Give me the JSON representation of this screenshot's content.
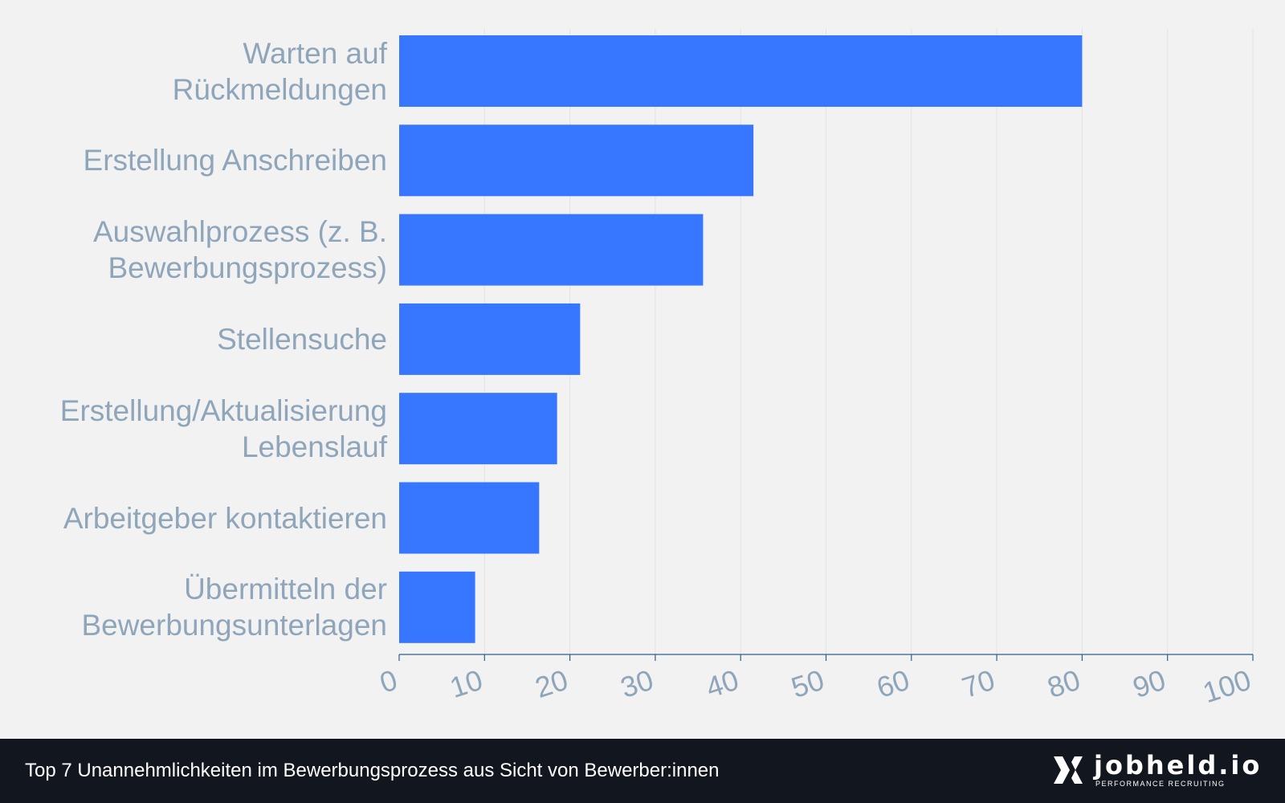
{
  "chart_data": {
    "type": "bar",
    "orientation": "horizontal",
    "title": "Top 7 Unannehmlichkeiten im Bewerbungsprozess aus Sicht von Bewerber:innen",
    "categories": [
      "Warten auf\nRückmeldungen",
      "Erstellung Anschreiben",
      "Auswahlprozess (z. B.\nBewerbungsprozess)",
      "Stellensuche",
      "Erstellung/Aktualisierung\nLebenslauf",
      "Arbeitgeber kontaktieren",
      "Übermitteln der\nBewerbungsunterlagen"
    ],
    "values": [
      80,
      41.5,
      35.6,
      21.2,
      18.5,
      16.4,
      8.9
    ],
    "xlim": [
      0,
      100
    ],
    "xticks": [
      "0",
      "10",
      "20",
      "30",
      "40",
      "50",
      "60",
      "70",
      "80",
      "90",
      "100"
    ],
    "xlabel": "",
    "ylabel": "",
    "grid": true,
    "bar_color": "#3777ff"
  },
  "footer": {
    "caption": "Top 7 Unannehmlichkeiten im Bewerbungsprozess aus Sicht von Bewerber:innen",
    "brand_name": "jobheld.io",
    "brand_tagline": "PERFORMANCE RECRUITING",
    "logo_icon": "jobheld-x-logo-icon"
  },
  "colors": {
    "background": "#f2f2f2",
    "bar": "#3777ff",
    "label": "#8fa5ba",
    "axis": "#2f5f8a",
    "footer_bg": "#12161f"
  }
}
